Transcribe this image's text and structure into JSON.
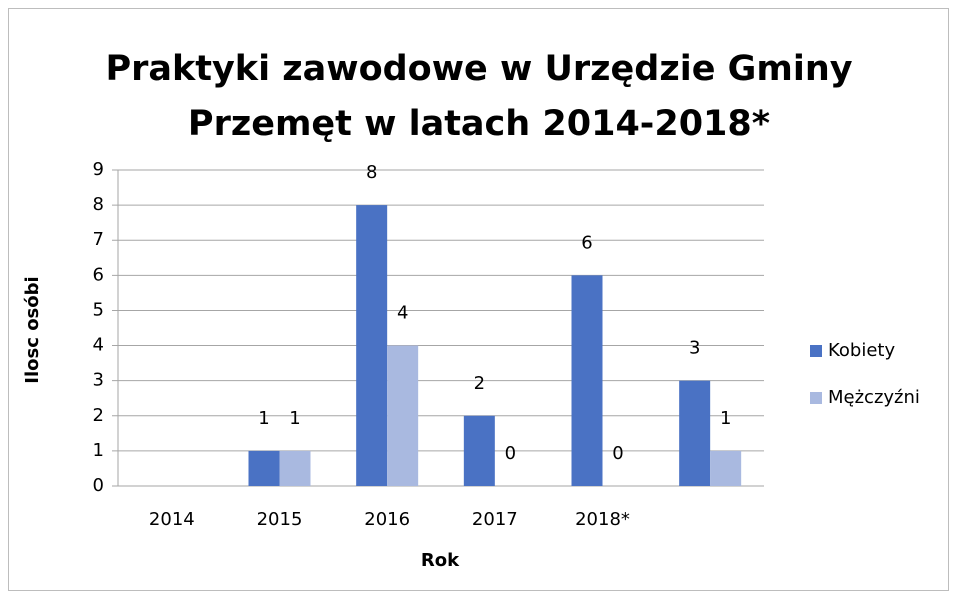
{
  "chart_data": {
    "type": "bar",
    "title": [
      "Praktyki zawodowe w  Urzędzie Gminy",
      "Przemęt w latach 2014-2018*"
    ],
    "x_label": "Rok",
    "y_label": "Ilosc osóbi",
    "categories": [
      "2014",
      "2015",
      "2016",
      "2017",
      "2018*",
      null
    ],
    "series": [
      {
        "name": "Kobiety",
        "color": "#4a72c4",
        "values": [
          null,
          1,
          8,
          2,
          6,
          3
        ]
      },
      {
        "name": "Mężczyźni",
        "color": "#a9b9e0",
        "values": [
          null,
          1,
          4,
          0,
          0,
          1
        ]
      }
    ],
    "ylim": [
      0,
      9
    ],
    "yticks": [
      0,
      1,
      2,
      3,
      4,
      5,
      6,
      7,
      8,
      9
    ],
    "grid": true,
    "legend": "right"
  }
}
